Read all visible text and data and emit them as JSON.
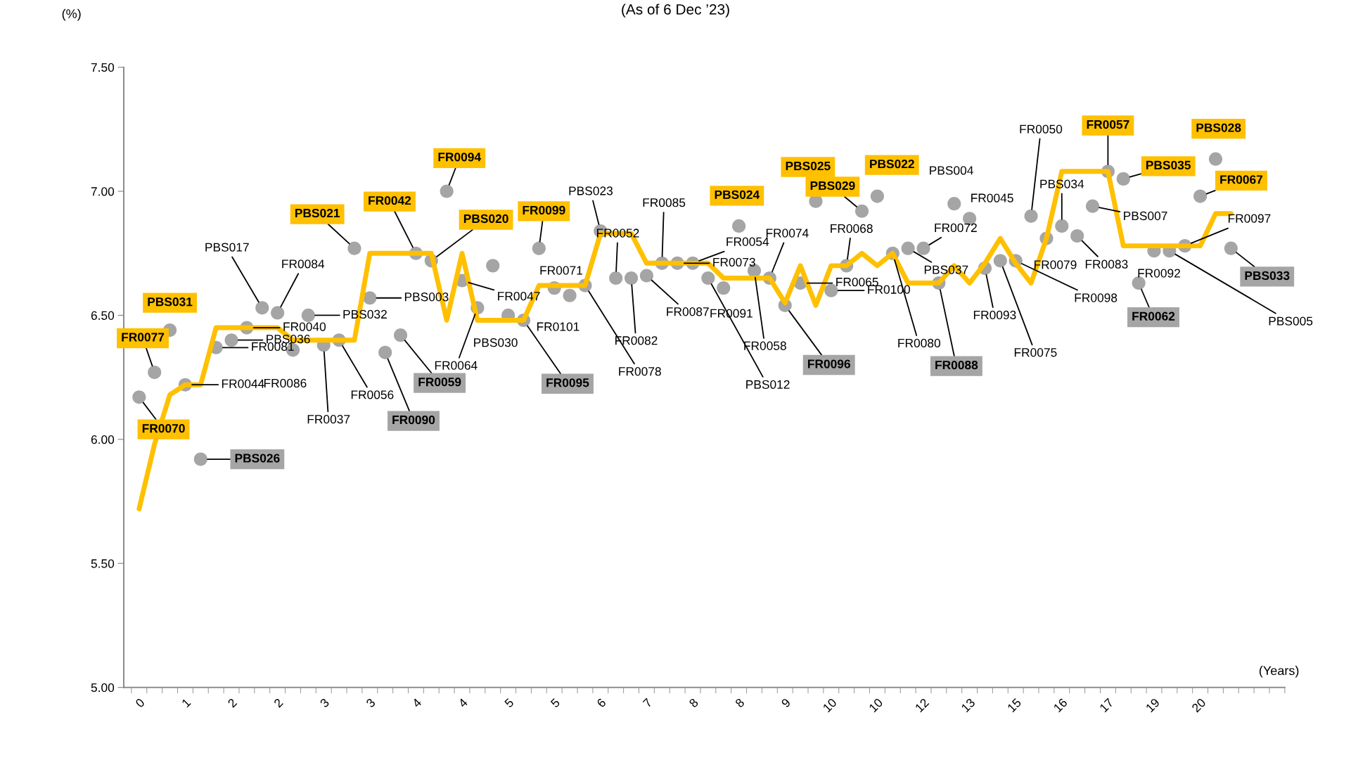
{
  "chart_data": {
    "type": "scatter",
    "title": "(As of 6 Dec ’23)",
    "xlabel": "(Years)",
    "ylabel": "(%)",
    "categories": [
      "0",
      null,
      null,
      "1",
      null,
      null,
      "2",
      null,
      null,
      "2",
      null,
      null,
      "3",
      null,
      null,
      "3",
      null,
      null,
      "4",
      null,
      null,
      "4",
      null,
      null,
      "5",
      null,
      null,
      "5",
      null,
      null,
      "6",
      null,
      null,
      "7",
      null,
      null,
      "8",
      null,
      null,
      "8",
      null,
      null,
      "9",
      null,
      null,
      "10",
      null,
      null,
      "10",
      null,
      null,
      "12",
      null,
      null,
      "13",
      null,
      null,
      "15",
      null,
      null,
      "16",
      null,
      null,
      "17",
      null,
      null,
      "19",
      null,
      null,
      "20",
      null,
      null,
      null,
      null,
      null
    ],
    "ylim": [
      5,
      7.5
    ],
    "yticks": [
      {
        "value": 5,
        "label": "5.00"
      },
      {
        "value": 5.5,
        "label": "5.50"
      },
      {
        "value": 6,
        "label": "6.00"
      },
      {
        "value": 6.5,
        "label": "6.50"
      },
      {
        "value": 7,
        "label": "7.00"
      },
      {
        "value": 7.5,
        "label": "7.50"
      }
    ],
    "marker": "circle",
    "grid": false,
    "series": [
      {
        "type": "line",
        "marker": "none",
        "color": "#ffc000",
        "values": [
          5.72,
          5.98,
          6.18,
          6.22,
          6.22,
          6.45,
          6.45,
          6.45,
          6.45,
          6.45,
          6.4,
          6.4,
          6.4,
          6.4,
          6.4,
          6.75,
          6.75,
          6.75,
          6.75,
          6.75,
          6.48,
          6.75,
          6.48,
          6.48,
          6.48,
          6.48,
          6.62,
          6.62,
          6.62,
          6.62,
          6.83,
          6.83,
          6.83,
          6.71,
          6.71,
          6.71,
          6.71,
          6.71,
          6.65,
          6.65,
          6.65,
          6.65,
          6.55,
          6.7,
          6.54,
          6.7,
          6.7,
          6.75,
          6.7,
          6.75,
          6.63,
          6.63,
          6.63,
          6.7,
          6.63,
          6.71,
          6.81,
          6.71,
          6.63,
          6.81,
          7.08,
          7.08,
          7.08,
          7.08,
          6.78,
          6.78,
          6.78,
          6.78,
          6.78,
          6.78,
          6.91,
          6.91,
          null,
          null,
          null
        ]
      },
      {
        "color": "#a5a5a5",
        "values": [
          null,
          null,
          null,
          6.22,
          null,
          6.37,
          6.4,
          6.45,
          6.53,
          6.51,
          6.36,
          6.5,
          6.38,
          6.4,
          null,
          6.57,
          null,
          null,
          null,
          null,
          null,
          6.64,
          6.53,
          6.7,
          6.5,
          null,
          null,
          6.61,
          6.58,
          6.62,
          6.84,
          6.65,
          6.65,
          6.66,
          6.71,
          6.71,
          6.71,
          6.65,
          6.61,
          null,
          6.68,
          6.65,
          null,
          6.63,
          null,
          6.6,
          6.7,
          null,
          null,
          6.75,
          6.77,
          6.77,
          null,
          6.95,
          6.89,
          6.69,
          6.72,
          6.72,
          6.9,
          6.81,
          6.86,
          6.82,
          6.94,
          null,
          null,
          null,
          6.76,
          6.76,
          6.78,
          null,
          null,
          null,
          null,
          null,
          null
        ],
        "value_labels": [
          null,
          null,
          null,
          "FR0044",
          null,
          "FR0081",
          "PBS036",
          "FR0040",
          "PBS017",
          "FR0084",
          "FR0086",
          "PBS032",
          "FR0037",
          "FR0056",
          null,
          "PBS003",
          null,
          null,
          null,
          null,
          null,
          "FR0047",
          "FR0064",
          null,
          "PBS030",
          null,
          null,
          "FR0071",
          "FR0101",
          "FR0078",
          "PBS023",
          "FR0052",
          "FR0082",
          "FR0087",
          "FR0085",
          "FR0073",
          "FR0054",
          "PBS012",
          "FR0091",
          null,
          "FR0058",
          "FR0074",
          null,
          "FR0065",
          null,
          "FR0100",
          "FR0068",
          null,
          null,
          "FR0080",
          "PBS037",
          "FR0072",
          null,
          "PBS004",
          "FR0045",
          "FR0093",
          "FR0075",
          "FR0098",
          "FR0050",
          "FR0079",
          "PBS034",
          "FR0083",
          "PBS007",
          null,
          null,
          null,
          "FR0092",
          "PBS005",
          "FR0097",
          null,
          null,
          null,
          null,
          null,
          null
        ]
      },
      {
        "color": "#a5a5a5",
        "values": [
          6.17,
          6.27,
          6.44,
          null,
          null,
          null,
          null,
          null,
          null,
          null,
          null,
          null,
          null,
          null,
          6.77,
          null,
          null,
          null,
          6.75,
          6.72,
          7.0,
          null,
          null,
          null,
          null,
          null,
          6.77,
          null,
          null,
          null,
          null,
          null,
          null,
          null,
          null,
          null,
          null,
          null,
          null,
          6.86,
          null,
          null,
          null,
          null,
          6.96,
          null,
          null,
          6.92,
          6.98,
          null,
          null,
          null,
          null,
          null,
          null,
          null,
          null,
          null,
          null,
          null,
          null,
          null,
          null,
          7.08,
          7.05,
          null,
          null,
          null,
          null,
          6.98,
          7.13,
          null,
          null,
          null,
          null
        ],
        "value_labels": [
          "FR0070",
          "FR0077",
          "PBS031",
          null,
          null,
          null,
          null,
          null,
          null,
          null,
          null,
          null,
          null,
          null,
          "PBS021",
          null,
          null,
          null,
          "FR0042",
          "PBS020",
          "FR0094",
          null,
          null,
          null,
          null,
          null,
          "FR0099",
          null,
          null,
          null,
          null,
          null,
          null,
          null,
          null,
          null,
          null,
          null,
          null,
          "PBS024",
          null,
          null,
          null,
          null,
          "PBS025",
          null,
          null,
          "PBS029",
          "PBS022",
          null,
          null,
          null,
          null,
          null,
          null,
          null,
          null,
          null,
          null,
          null,
          null,
          null,
          null,
          "FR0057",
          "PBS035",
          null,
          null,
          null,
          null,
          "FR0067",
          "PBS028",
          null,
          null,
          null,
          null
        ]
      },
      {
        "color": "#a5a5a5",
        "values": [
          null,
          null,
          null,
          null,
          5.92,
          null,
          null,
          null,
          null,
          null,
          null,
          null,
          null,
          null,
          null,
          null,
          6.35,
          6.42,
          null,
          null,
          null,
          null,
          null,
          null,
          null,
          6.48,
          null,
          null,
          null,
          null,
          null,
          null,
          null,
          null,
          null,
          null,
          null,
          null,
          null,
          null,
          null,
          null,
          6.54,
          null,
          null,
          null,
          null,
          null,
          null,
          null,
          null,
          null,
          6.63,
          null,
          null,
          null,
          null,
          null,
          null,
          null,
          null,
          null,
          null,
          null,
          null,
          6.63,
          null,
          null,
          null,
          null,
          null,
          6.77,
          null,
          null,
          null
        ],
        "value_labels": [
          null,
          null,
          null,
          null,
          "PBS026",
          null,
          null,
          null,
          null,
          null,
          null,
          null,
          null,
          null,
          null,
          null,
          "FR0090",
          "FR0059",
          null,
          null,
          null,
          null,
          null,
          null,
          null,
          "FR0095",
          null,
          null,
          null,
          null,
          null,
          null,
          null,
          null,
          null,
          null,
          null,
          null,
          null,
          null,
          null,
          null,
          "FR0096",
          null,
          null,
          null,
          null,
          null,
          null,
          null,
          null,
          null,
          "FR0088",
          null,
          null,
          null,
          null,
          null,
          null,
          null,
          null,
          null,
          null,
          null,
          null,
          "FR0062",
          null,
          null,
          null,
          null,
          null,
          "PBS033",
          null,
          null,
          null
        ]
      }
    ]
  }
}
